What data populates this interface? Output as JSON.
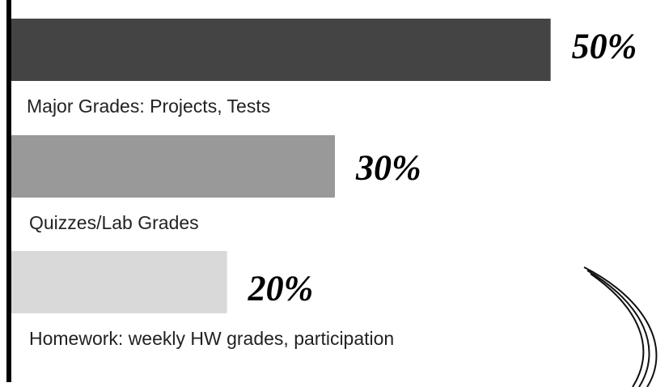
{
  "chart_data": {
    "type": "hbar",
    "categories": [
      "Major Grades: Projects, Tests",
      "Quizzes/Lab Grades",
      "Homework: weekly HW grades, participation"
    ],
    "values": [
      50,
      30,
      20
    ],
    "value_labels": [
      "50%",
      "30%",
      "20%"
    ],
    "colors": [
      "#444444",
      "#999999",
      "#d9d9d9"
    ],
    "xlim": [
      0,
      60
    ]
  }
}
